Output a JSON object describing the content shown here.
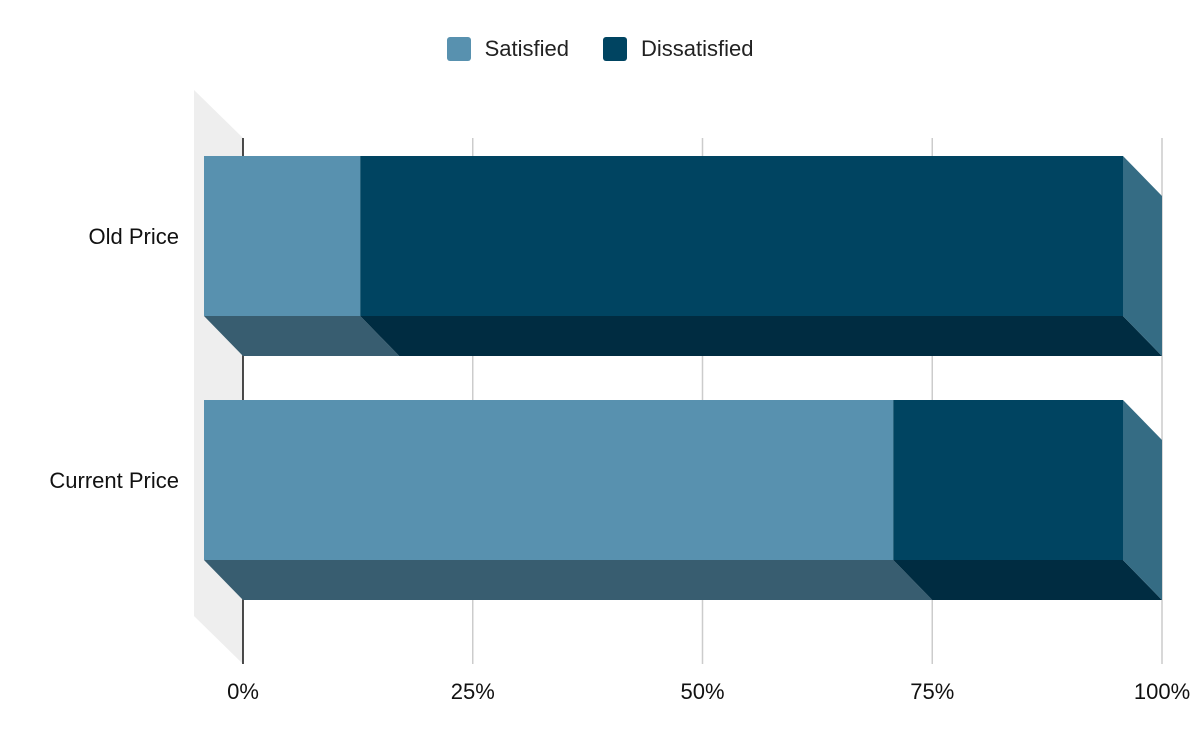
{
  "chart_data": {
    "type": "bar",
    "orientation": "horizontal",
    "stacked": "percent",
    "three_d": true,
    "categories": [
      "Old Price",
      "Current Price"
    ],
    "series": [
      {
        "name": "Satisfied",
        "values": [
          17,
          75
        ],
        "color": "#5891af",
        "top_color": "#385d70",
        "side_color": "#356c84"
      },
      {
        "name": "Dissatisfied",
        "values": [
          83,
          25
        ],
        "color": "#004461",
        "top_color": "#002c41",
        "side_color": "#356c84"
      }
    ],
    "x_ticks": [
      "0%",
      "25%",
      "50%",
      "75%",
      "100%"
    ],
    "xlim": [
      0,
      100
    ],
    "legend_position": "top",
    "grid": true
  }
}
